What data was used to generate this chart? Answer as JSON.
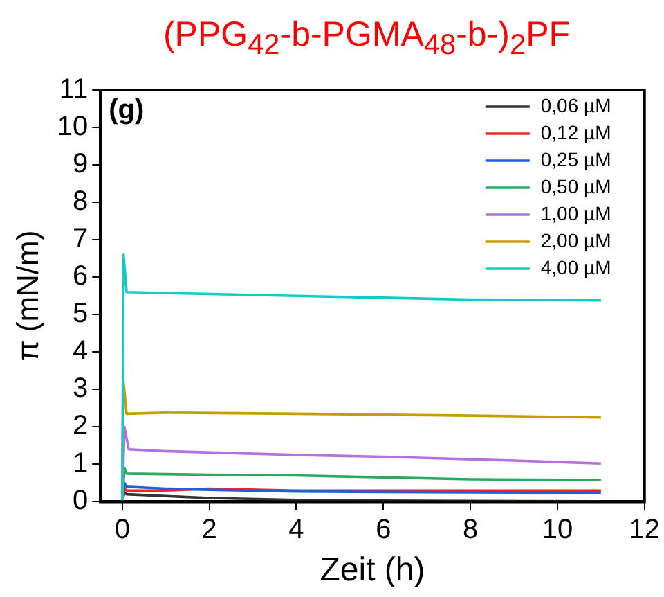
{
  "chart_data": {
    "type": "line",
    "title": "(PPG$_{42}$-b-PGMA$_{48}$-b-)$_{2}$PF",
    "xlabel": "Zeit (h)",
    "ylabel": "π (mN/m)",
    "annotations": [
      "(g)"
    ],
    "xlim": [
      -0.5,
      12
    ],
    "xticks": [
      0,
      2,
      4,
      6,
      8,
      10,
      12
    ],
    "ylim": [
      0,
      11
    ],
    "yticks": [
      0,
      1,
      2,
      3,
      4,
      5,
      6,
      7,
      8,
      9,
      10,
      11
    ],
    "grid": false,
    "legend": "top right",
    "marker": "none",
    "line_style": "solid",
    "series": [
      {
        "name": "0,06 µM",
        "color": "#333333",
        "x": [
          0,
          0.05,
          0.1,
          1,
          2,
          4,
          6,
          8,
          11
        ],
        "values": [
          0,
          0.25,
          0.2,
          0.15,
          0.1,
          0.05,
          0.03,
          0.02,
          0.01
        ]
      },
      {
        "name": "0,12 µM",
        "color": "#ff2020",
        "x": [
          0,
          0.05,
          0.1,
          1,
          2,
          4,
          6,
          8,
          11
        ],
        "values": [
          0,
          0.35,
          0.3,
          0.3,
          0.35,
          0.3,
          0.3,
          0.3,
          0.3
        ]
      },
      {
        "name": "0,25 µM",
        "color": "#1f5fdf",
        "x": [
          0,
          0.05,
          0.1,
          1,
          2,
          4,
          6,
          8,
          11
        ],
        "values": [
          0,
          0.5,
          0.4,
          0.35,
          0.32,
          0.27,
          0.26,
          0.25,
          0.24
        ]
      },
      {
        "name": "0,50 µM",
        "color": "#2ca860",
        "x": [
          0,
          0.05,
          0.1,
          2,
          4,
          6,
          8,
          11
        ],
        "values": [
          0,
          0.9,
          0.75,
          0.72,
          0.7,
          0.65,
          0.6,
          0.58
        ]
      },
      {
        "name": "1,00 µM",
        "color": "#b56fe0",
        "x": [
          0,
          0.05,
          0.15,
          1,
          4,
          6,
          9,
          11
        ],
        "values": [
          0,
          2.0,
          1.4,
          1.35,
          1.25,
          1.2,
          1.1,
          1.02
        ]
      },
      {
        "name": "2,00 µM",
        "color": "#c89b00",
        "x": [
          0,
          0.02,
          0.1,
          1,
          4,
          8,
          11
        ],
        "values": [
          0,
          3.3,
          2.35,
          2.38,
          2.35,
          2.3,
          2.25
        ]
      },
      {
        "name": "4,00 µM",
        "color": "#17c8c8",
        "x": [
          0,
          0.03,
          0.1,
          2,
          4,
          6,
          8,
          11
        ],
        "values": [
          0,
          6.6,
          5.6,
          5.55,
          5.5,
          5.45,
          5.4,
          5.38
        ]
      }
    ]
  }
}
